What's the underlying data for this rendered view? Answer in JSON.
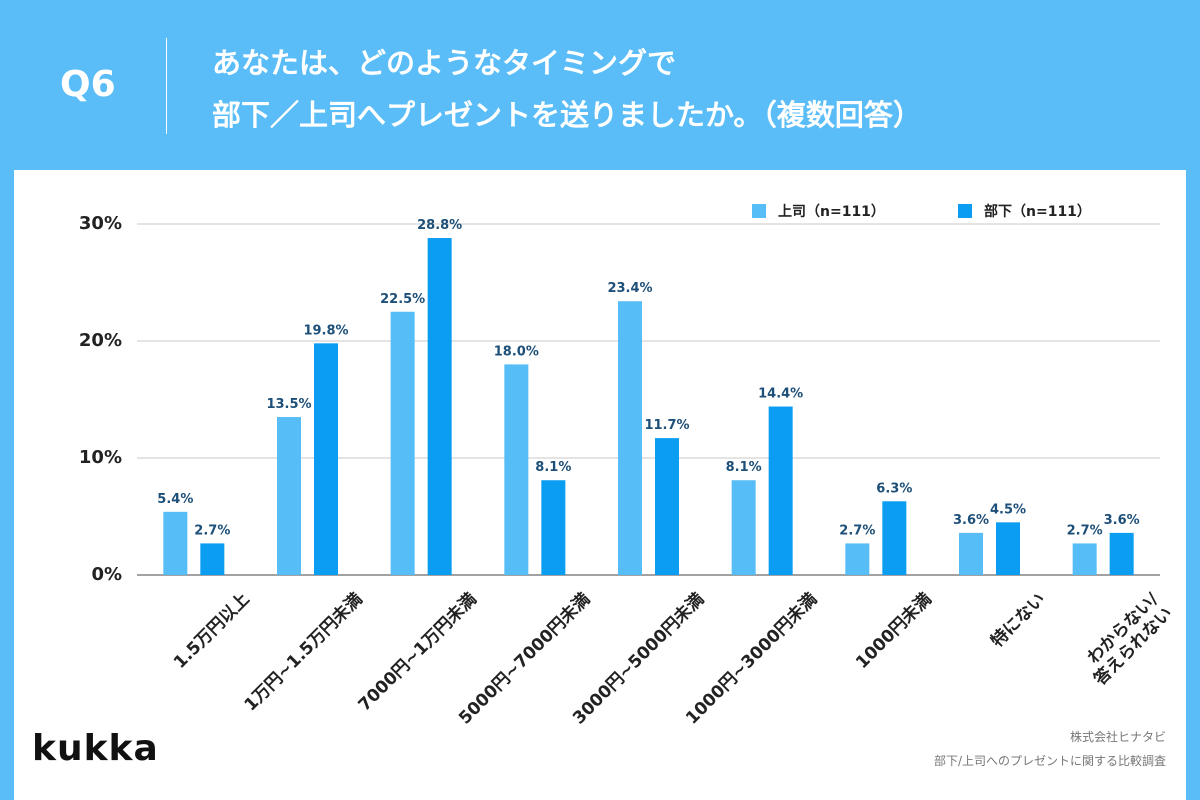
{
  "question": "Q6",
  "chart_data": {
    "type": "bar",
    "title": [
      "あなたは、どのようなタイミングで",
      "部下／上司へプレゼントを送りましたか。（複数回答）"
    ],
    "categories": [
      "1.5万円以上",
      "1万円~1.5万円未満",
      "7000円~1万円未満",
      "5000円~7000円未満",
      "3000円~5000円未満",
      "1000円~3000円未満",
      "1000円未満",
      "特にない",
      "わからない/\n答えられない"
    ],
    "series": [
      {
        "name": "上司（n=111）",
        "color": "#56bdf6",
        "values": [
          5.4,
          13.5,
          22.5,
          18.0,
          23.4,
          8.1,
          2.7,
          3.6,
          2.7
        ],
        "value_labels": [
          "5.4%",
          "13.5%",
          "22.5%",
          "18.0%",
          "23.4%",
          "8.1%",
          "2.7%",
          "3.6%",
          "2.7%"
        ]
      },
      {
        "name": "部下（n=111）",
        "color": "#0a9df1",
        "values": [
          2.7,
          19.8,
          28.8,
          8.1,
          11.7,
          14.4,
          6.3,
          4.5,
          3.6
        ],
        "value_labels": [
          "2.7%",
          "19.8%",
          "28.8%",
          "8.1%",
          "11.7%",
          "14.4%",
          "6.3%",
          "4.5%",
          "3.6%"
        ]
      }
    ],
    "ylim": [
      0,
      30
    ],
    "yticks": [
      {
        "value": 0,
        "label": "0%"
      },
      {
        "value": 10,
        "label": "10%"
      },
      {
        "value": 20,
        "label": "20%"
      },
      {
        "value": 30,
        "label": "30%"
      }
    ],
    "grid": true,
    "legend": "top-right"
  },
  "footer": {
    "logo": "kukka",
    "source": [
      "株式会社ヒナタビ",
      "部下/上司へのプレゼントに関する比較調査"
    ]
  }
}
